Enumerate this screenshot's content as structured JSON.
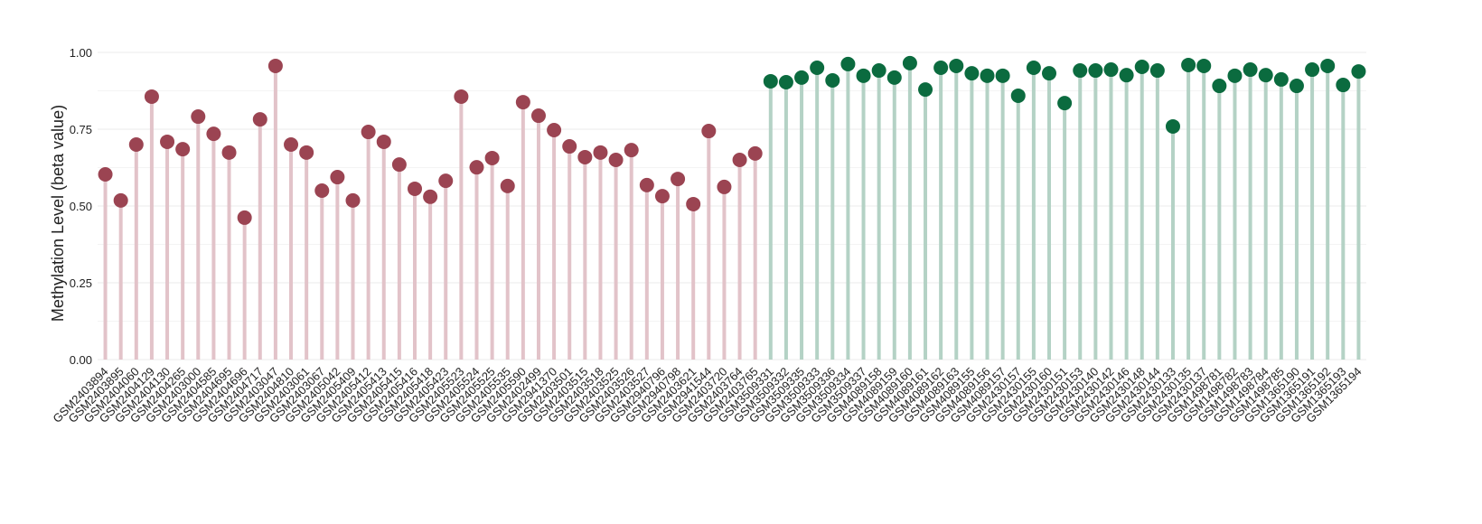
{
  "chart_data": {
    "type": "lollipop",
    "y_label": "Methylation Level (beta value)",
    "ylim": [
      0,
      1
    ],
    "yticks": [
      {
        "value": 0,
        "label": "0.00"
      },
      {
        "value": 0.25,
        "label": "0.25"
      },
      {
        "value": 0.5,
        "label": "0.50"
      },
      {
        "value": 0.75,
        "label": "0.75"
      },
      {
        "value": 1,
        "label": "1.00"
      }
    ],
    "grid": true,
    "categories": [
      "GSM2403894",
      "GSM2403895",
      "GSM2404060",
      "GSM2404129",
      "GSM2404130",
      "GSM2404265",
      "GSM2403000",
      "GSM2404585",
      "GSM2404695",
      "GSM2404696",
      "GSM2404717",
      "GSM2403047",
      "GSM2404810",
      "GSM2403061",
      "GSM2403067",
      "GSM2405042",
      "GSM2405409",
      "GSM2405412",
      "GSM2405413",
      "GSM2405415",
      "GSM2405416",
      "GSM2405418",
      "GSM2405423",
      "GSM2405523",
      "GSM2405524",
      "GSM2405525",
      "GSM2405535",
      "GSM2405590",
      "GSM2402499",
      "GSM2941370",
      "GSM2403501",
      "GSM2403515",
      "GSM2403518",
      "GSM2403525",
      "GSM2403526",
      "GSM2403527",
      "GSM2940796",
      "GSM2940798",
      "GSM2403621",
      "GSM2941544",
      "GSM2403720",
      "GSM2403764",
      "GSM2403765",
      "GSM3509331",
      "GSM3509332",
      "GSM3509335",
      "GSM3509333",
      "GSM3509336",
      "GSM3509334",
      "GSM3509337",
      "GSM4089158",
      "GSM4089159",
      "GSM4089160",
      "GSM4089161",
      "GSM4089162",
      "GSM4089163",
      "GSM4089155",
      "GSM4089156",
      "GSM4089157",
      "GSM2430157",
      "GSM2430155",
      "GSM2430160",
      "GSM2430151",
      "GSM2430153",
      "GSM2430140",
      "GSM2430142",
      "GSM2430146",
      "GSM2430148",
      "GSM2430144",
      "GSM2430133",
      "GSM2430135",
      "GSM2430137",
      "GSM1498781",
      "GSM1498782",
      "GSM1498783",
      "GSM1498784",
      "GSM1498785",
      "GSM1365190",
      "GSM1365191",
      "GSM1365192",
      "GSM1365193",
      "GSM1365194"
    ],
    "series": [
      {
        "color": "#9b4452",
        "stem_color": "#e2c3c9",
        "values": [
          0.603,
          0.518,
          0.7,
          0.856,
          0.709,
          0.685,
          0.791,
          0.735,
          0.674,
          0.462,
          0.782,
          0.956,
          0.7,
          0.674,
          0.55,
          0.594,
          0.518,
          0.741,
          0.709,
          0.635,
          0.556,
          0.53,
          0.582,
          0.856,
          0.626,
          0.656,
          0.565,
          0.838,
          0.794,
          0.747,
          0.694,
          0.659,
          0.674,
          0.65,
          0.682,
          0.568,
          0.532,
          0.588,
          0.506,
          0.744,
          0.562,
          0.65,
          0.671,
          null,
          null,
          null,
          null,
          null,
          null,
          null,
          null,
          null,
          null,
          null,
          null,
          null,
          null,
          null,
          null,
          null,
          null,
          null,
          null,
          null,
          null,
          null,
          null,
          null,
          null,
          null,
          null,
          null,
          null,
          null,
          null,
          null,
          null,
          null,
          null,
          null,
          null,
          null
        ]
      },
      {
        "color": "#0b6b3f",
        "stem_color": "#b4d2c5",
        "values": [
          null,
          null,
          null,
          null,
          null,
          null,
          null,
          null,
          null,
          null,
          null,
          null,
          null,
          null,
          null,
          null,
          null,
          null,
          null,
          null,
          null,
          null,
          null,
          null,
          null,
          null,
          null,
          null,
          null,
          null,
          null,
          null,
          null,
          null,
          null,
          null,
          null,
          null,
          null,
          null,
          null,
          null,
          null,
          0.906,
          0.903,
          0.918,
          0.95,
          0.909,
          0.962,
          0.924,
          0.941,
          0.918,
          0.965,
          0.879,
          0.95,
          0.956,
          0.932,
          0.924,
          0.924,
          0.859,
          0.95,
          0.932,
          0.835,
          0.941,
          0.941,
          0.944,
          0.926,
          0.953,
          0.941,
          0.759,
          0.959,
          0.956,
          0.891,
          0.924,
          0.944,
          0.926,
          0.912,
          0.891,
          0.944,
          0.956,
          0.894,
          0.938
        ]
      }
    ]
  }
}
